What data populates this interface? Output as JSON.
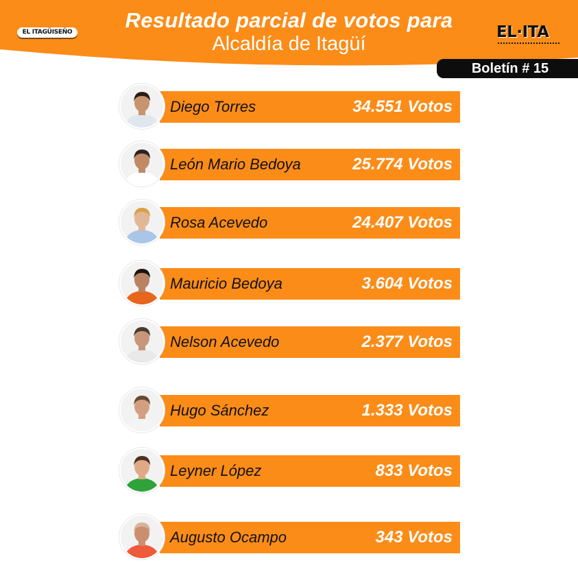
{
  "header": {
    "title_line1": "Resultado parcial de votos para",
    "title_line2": "Alcaldía de Itagüí",
    "logo_left": "EL ITAGÜISEÑO",
    "logo_right": "EL·ITA",
    "bulletin": "Boletín # 15"
  },
  "colors": {
    "brand_orange": "#fb8c18",
    "dark": "#0d0d0d"
  },
  "candidates": [
    {
      "name": "Diego Torres",
      "votes": "34.551 Votos",
      "shirt": "#dfe6ee",
      "skin": "#c8946e",
      "hair": "#2a1c14"
    },
    {
      "name": "León Mario Bedoya",
      "votes": "25.774 Votos",
      "shirt": "#ffffff",
      "skin": "#c08a66",
      "hair": "#2b2420"
    },
    {
      "name": "Rosa Acevedo",
      "votes": "24.407 Votos",
      "shirt": "#a9c6e8",
      "skin": "#e2b797",
      "hair": "#d9a04a"
    },
    {
      "name": "Mauricio Bedoya",
      "votes": "3.604 Votos",
      "shirt": "#e8651e",
      "skin": "#b98262",
      "hair": "#1b1410"
    },
    {
      "name": "Nelson Acevedo",
      "votes": "2.377 Votos",
      "shirt": "#e9e9e9",
      "skin": "#c8977a",
      "hair": "#4a3a2c"
    },
    {
      "name": "Hugo Sánchez",
      "votes": "1.333 Votos",
      "shirt": "#f4f4f4",
      "skin": "#d2a080",
      "hair": "#6a4a34"
    },
    {
      "name": "Leyner López",
      "votes": "833 Votos",
      "shirt": "#2fa33a",
      "skin": "#e0a985",
      "hair": "#4b3324"
    },
    {
      "name": "Augusto Ocampo",
      "votes": "343 Votos",
      "shirt": "#ef5a3a",
      "skin": "#c98f6e",
      "hair": "#d8b49a"
    }
  ]
}
